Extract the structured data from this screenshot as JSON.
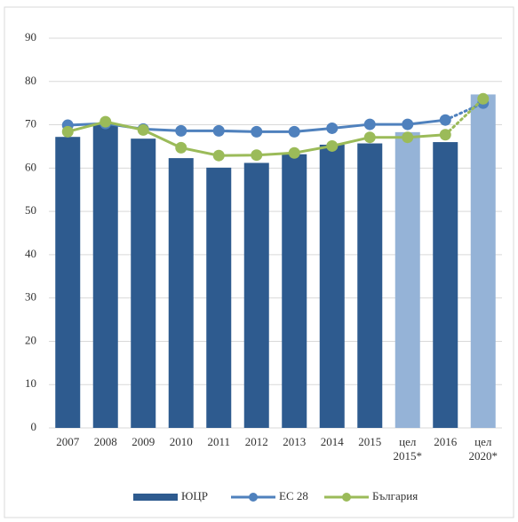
{
  "chart_data": {
    "type": "bar-line",
    "categories": [
      "2007",
      "2008",
      "2009",
      "2010",
      "2011",
      "2012",
      "2013",
      "2014",
      "2015",
      "цел 2015*",
      "2016",
      "цел 2020*"
    ],
    "series": [
      {
        "name": "ЮЦР",
        "type": "bar",
        "color": "#2e5b8f",
        "colors": [
          "#2e5b8f",
          "#2e5b8f",
          "#2e5b8f",
          "#2e5b8f",
          "#2e5b8f",
          "#2e5b8f",
          "#2e5b8f",
          "#2e5b8f",
          "#2e5b8f",
          "#95b3d7",
          "#2e5b8f",
          "#95b3d7"
        ],
        "values": [
          67.2,
          70.2,
          66.8,
          62.3,
          60.1,
          61.2,
          63.2,
          65.4,
          65.7,
          68.3,
          66.0,
          77.0
        ]
      },
      {
        "name": "ЕС 28",
        "type": "line",
        "color": "#4f81bd",
        "dotted_last_segment": true,
        "values": [
          69.9,
          70.3,
          69.0,
          68.6,
          68.6,
          68.4,
          68.4,
          69.2,
          70.1,
          70.1,
          71.1,
          75.0
        ]
      },
      {
        "name": "България",
        "type": "line",
        "color": "#9bbb59",
        "dotted_last_segment": true,
        "values": [
          68.4,
          70.7,
          68.8,
          64.7,
          62.9,
          63.0,
          63.5,
          65.1,
          67.1,
          67.1,
          67.7,
          76.0
        ]
      }
    ],
    "ylim": [
      0,
      90
    ],
    "yticks": [
      0,
      10,
      20,
      30,
      40,
      50,
      60,
      70,
      80,
      90
    ],
    "grid": true,
    "legend": "bottom"
  }
}
